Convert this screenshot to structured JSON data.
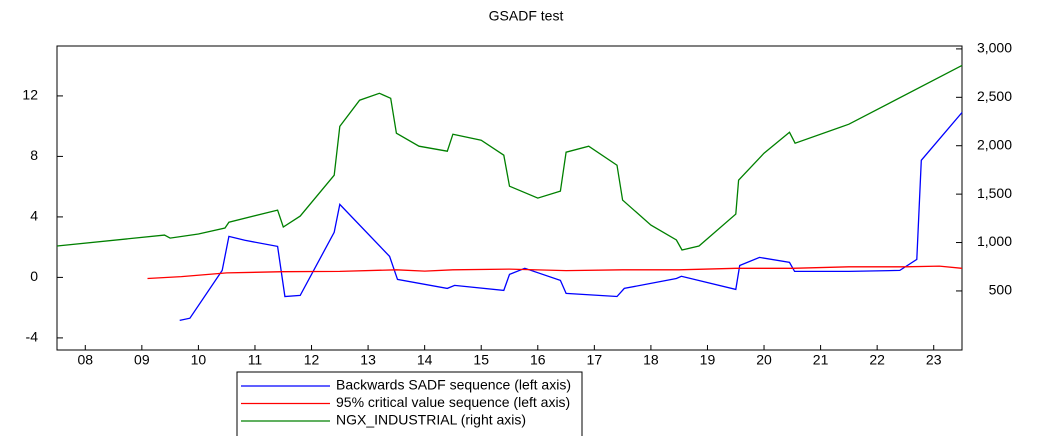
{
  "chart_data": {
    "type": "line",
    "title": "GSADF test",
    "xlim": [
      8,
      24
    ],
    "xticks": [
      {
        "value": 8.5,
        "label": "08"
      },
      {
        "value": 9.5,
        "label": "09"
      },
      {
        "value": 10.5,
        "label": "10"
      },
      {
        "value": 11.5,
        "label": "11"
      },
      {
        "value": 12.5,
        "label": "12"
      },
      {
        "value": 13.5,
        "label": "13"
      },
      {
        "value": 14.5,
        "label": "14"
      },
      {
        "value": 15.5,
        "label": "15"
      },
      {
        "value": 16.5,
        "label": "16"
      },
      {
        "value": 17.5,
        "label": "17"
      },
      {
        "value": 18.5,
        "label": "18"
      },
      {
        "value": 19.5,
        "label": "19"
      },
      {
        "value": 20.5,
        "label": "20"
      },
      {
        "value": 21.5,
        "label": "21"
      },
      {
        "value": 22.5,
        "label": "22"
      },
      {
        "value": 23.5,
        "label": "23"
      }
    ],
    "ylim": [
      -4.8,
      15.3
    ],
    "yticks": [
      -4,
      0,
      4,
      8,
      12
    ],
    "y2lim": [
      -110,
      3030
    ],
    "y2ticks": [
      500,
      {
        "value": 1000,
        "label": "1,000"
      },
      {
        "value": 1500,
        "label": "1,500"
      },
      {
        "value": 2000,
        "label": "2,000"
      },
      {
        "value": 2500,
        "label": "2,500"
      },
      {
        "value": 3000,
        "label": "3,000"
      }
    ],
    "series": [
      {
        "name": "Backwards SADF sequence (left axis)",
        "color": "#0000ff",
        "x": [
          10.17,
          10.35,
          10.92,
          11.04,
          11.32,
          11.9,
          12.03,
          12.3,
          12.9,
          13.0,
          13.88,
          14.02,
          14.9,
          15.03,
          15.9,
          16.0,
          16.27,
          16.9,
          17.0,
          17.9,
          18.03,
          18.95,
          19.04,
          20.0,
          20.07,
          20.42,
          20.95,
          21.04,
          22.0,
          22.9,
          23.2,
          23.28,
          24.0
        ],
        "values": [
          -2.84,
          -2.7,
          0.46,
          2.71,
          2.45,
          2.05,
          -1.26,
          -1.19,
          2.98,
          4.83,
          1.39,
          -0.13,
          -0.73,
          -0.53,
          -0.86,
          0.2,
          0.6,
          -0.2,
          -1.06,
          -1.26,
          -0.73,
          -0.07,
          0.07,
          -0.79,
          0.79,
          1.32,
          0.99,
          0.4,
          0.4,
          0.46,
          1.19,
          7.74,
          10.9
        ]
      },
      {
        "name": "95% critical value sequence (left axis)",
        "color": "#ff0000",
        "x": [
          9.6,
          10.2,
          11.0,
          12.0,
          13.0,
          14.0,
          14.5,
          15.0,
          16.0,
          17.0,
          18.0,
          19.0,
          20.0,
          21.0,
          22.0,
          23.0,
          23.6,
          24.0
        ],
        "values": [
          -0.07,
          0.05,
          0.3,
          0.38,
          0.4,
          0.5,
          0.42,
          0.5,
          0.55,
          0.45,
          0.5,
          0.5,
          0.6,
          0.6,
          0.7,
          0.7,
          0.75,
          0.6
        ]
      },
      {
        "name": "NGX_INDUSTRIAL (right axis)",
        "color": "#008000",
        "axis": "y2",
        "x": [
          8.0,
          9.9,
          10.0,
          10.5,
          10.97,
          11.04,
          11.9,
          12.0,
          12.3,
          12.9,
          13.0,
          13.35,
          13.7,
          13.9,
          14.0,
          14.4,
          14.9,
          15.0,
          15.5,
          15.9,
          16.0,
          16.5,
          16.9,
          17.0,
          17.4,
          17.9,
          18.0,
          18.5,
          18.95,
          19.05,
          19.35,
          20.0,
          20.05,
          20.5,
          20.95,
          21.05,
          22.0,
          24.0
        ],
        "values": [
          964,
          1077,
          1046,
          1088,
          1150,
          1210,
          1335,
          1160,
          1273,
          1696,
          2200,
          2470,
          2541,
          2490,
          2129,
          1995,
          1943,
          2119,
          2057,
          1902,
          1582,
          1459,
          1531,
          1933,
          1995,
          1799,
          1438,
          1180,
          1026,
          923,
          964,
          1294,
          1644,
          1923,
          2139,
          2026,
          2222,
          2830
        ]
      }
    ]
  }
}
